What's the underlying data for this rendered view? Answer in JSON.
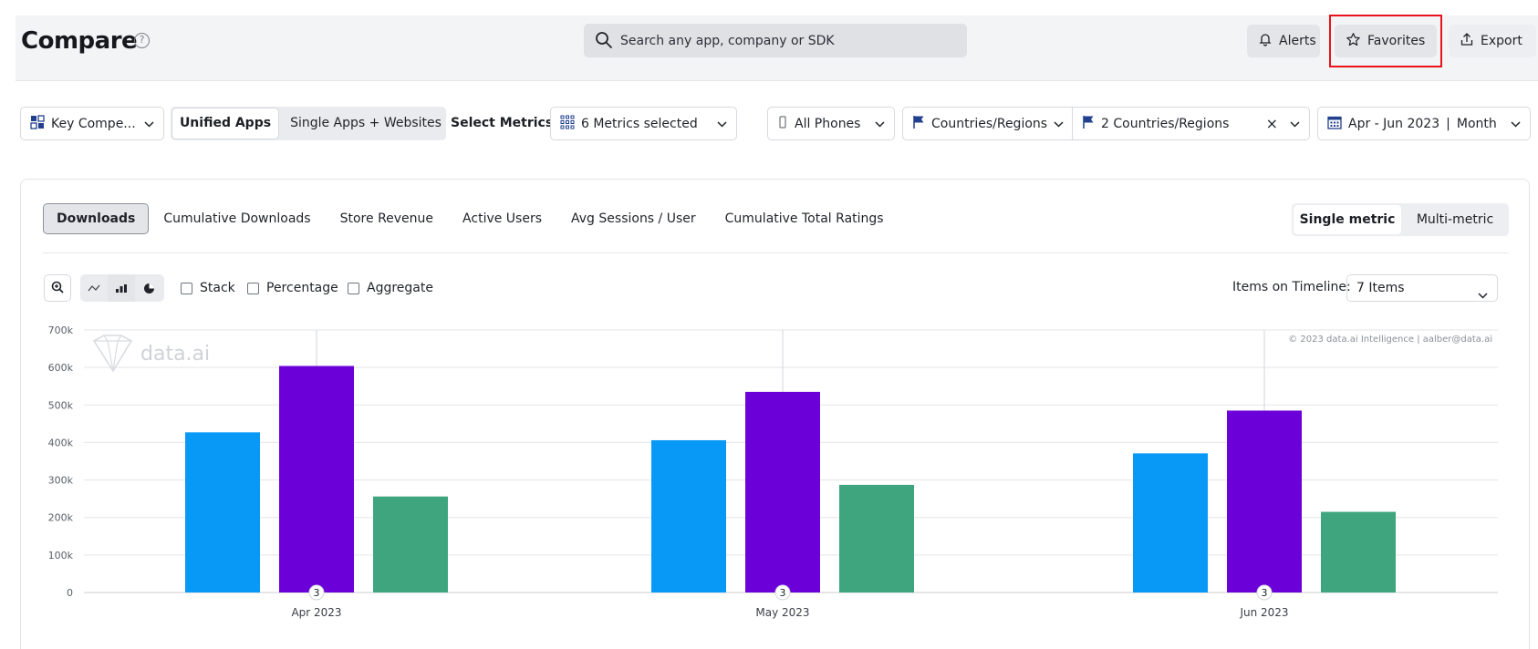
{
  "header": {
    "title": "Compare",
    "help_glyph": "?",
    "search_placeholder": "Search any app, company or SDK",
    "alerts_label": "Alerts",
    "favorites_label": "Favorites",
    "export_label": "Export"
  },
  "filters": {
    "compare_set": "Key Compe...",
    "unified_apps": "Unified Apps",
    "single_apps": "Single Apps + Websites",
    "select_metrics_label": "Select Metrics:",
    "metrics_selected": "6 Metrics selected",
    "devices": "All Phones",
    "country_mode": "Countries/Regions",
    "countries": "2 Countries/Regions",
    "clear_glyph": "×",
    "date_range": "Apr - Jun 2023",
    "granularity_sep": "|",
    "granularity": "Month"
  },
  "tabs": [
    {
      "label": "Downloads",
      "active": true
    },
    {
      "label": "Cumulative Downloads"
    },
    {
      "label": "Store Revenue"
    },
    {
      "label": "Active Users"
    },
    {
      "label": "Avg Sessions / User"
    },
    {
      "label": "Cumulative Total Ratings"
    }
  ],
  "modes": {
    "single": "Single metric",
    "multi": "Multi-metric"
  },
  "options": {
    "stack": "Stack",
    "percentage": "Percentage",
    "aggregate": "Aggregate",
    "timeline_label": "Items on Timeline:",
    "timeline_value": "7 Items"
  },
  "chart_data": {
    "type": "bar",
    "categories": [
      "Apr 2023",
      "May 2023",
      "Jun 2023"
    ],
    "series": [
      {
        "color": "#0899f7",
        "values": [
          427000,
          406000,
          371000
        ]
      },
      {
        "color": "#6b00d8",
        "values": [
          604000,
          535000,
          485000
        ]
      },
      {
        "color": "#3ea57f",
        "values": [
          256000,
          287000,
          215000
        ]
      }
    ],
    "yticks": [
      "0",
      "100k",
      "200k",
      "300k",
      "400k",
      "500k",
      "600k",
      "700k"
    ],
    "ylim": [
      0,
      700000
    ],
    "grid": true,
    "marker_label": "3",
    "watermark": "data.ai",
    "copyright": "© 2023 data.ai Intelligence | aalber@data.ai"
  }
}
